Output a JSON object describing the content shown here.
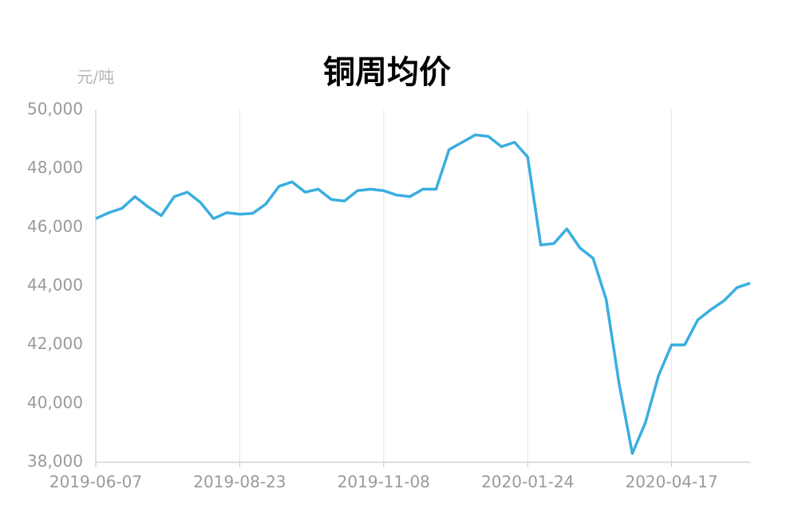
{
  "chart_data": {
    "type": "line",
    "title": "铜周均价",
    "y_label": "元/吨",
    "categories": [
      "2019-06-07",
      null,
      null,
      null,
      null,
      null,
      null,
      null,
      null,
      null,
      null,
      "2019-08-23",
      null,
      null,
      null,
      null,
      null,
      null,
      null,
      null,
      null,
      null,
      "2019-11-08",
      null,
      null,
      null,
      null,
      null,
      null,
      null,
      null,
      null,
      null,
      "2020-01-24",
      null,
      null,
      null,
      null,
      null,
      null,
      null,
      null,
      null,
      null,
      "2020-04-17",
      null,
      null,
      null,
      null,
      null,
      null
    ],
    "series": [
      {
        "color": "#3aaee0",
        "values": [
          46300,
          46500,
          46650,
          47050,
          46700,
          46400,
          47050,
          47200,
          46850,
          46300,
          46500,
          46450,
          46480,
          46800,
          47400,
          47550,
          47200,
          47300,
          46950,
          46900,
          47250,
          47300,
          47250,
          47100,
          47050,
          47300,
          47300,
          48650,
          48900,
          49150,
          49100,
          48750,
          48900,
          48400,
          45400,
          45450,
          45950,
          45300,
          44950,
          43550,
          40650,
          38300,
          39350,
          40950,
          42000,
          42000,
          42850,
          43200,
          43500,
          43950,
          44100
        ]
      }
    ],
    "ylim": [
      38000,
      50000
    ],
    "yticks": [
      {
        "value": 38000,
        "label": "38,000"
      },
      {
        "value": 40000,
        "label": "40,000"
      },
      {
        "value": 42000,
        "label": "42,000"
      },
      {
        "value": 44000,
        "label": "44,000"
      },
      {
        "value": 46000,
        "label": "46,000"
      },
      {
        "value": 48000,
        "label": "48,000"
      },
      {
        "value": 50000,
        "label": "50,000"
      }
    ],
    "grid": true
  }
}
